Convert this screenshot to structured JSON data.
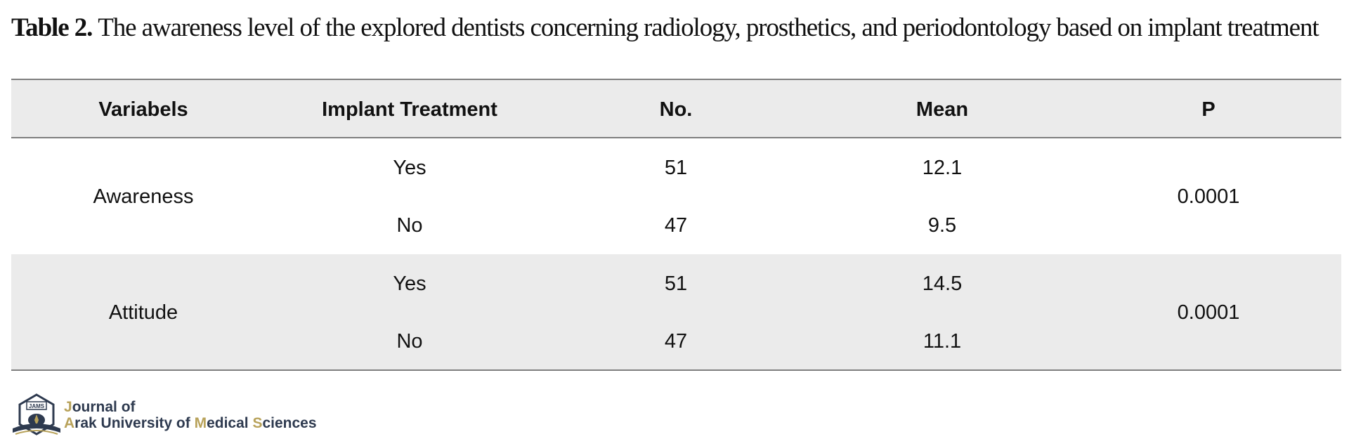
{
  "caption": {
    "label": "Table 2.",
    "text": "The awareness level of the explored dentists concerning radiology, prosthetics, and periodontology based on implant treatment"
  },
  "table": {
    "headers": [
      "Variabels",
      "Implant Treatment",
      "No.",
      "Mean",
      "P"
    ],
    "groups": [
      {
        "variable": "Awareness",
        "p": "0.0001",
        "rows": [
          {
            "treatment": "Yes",
            "no": "51",
            "mean": "12.1"
          },
          {
            "treatment": "No",
            "no": "47",
            "mean": "9.5"
          }
        ]
      },
      {
        "variable": "Attitude",
        "p": "0.0001",
        "rows": [
          {
            "treatment": "Yes",
            "no": "51",
            "mean": "14.5"
          },
          {
            "treatment": "No",
            "no": "47",
            "mean": "11.1"
          }
        ]
      }
    ]
  },
  "logo": {
    "line1_initial": "J",
    "line1_rest": "ournal of",
    "w1_initial": "A",
    "w1_rest": "rak University of ",
    "w2_initial": "M",
    "w2_rest": "edical ",
    "w3_initial": "S",
    "w3_rest": "ciences",
    "seal_text": "JAMS",
    "colors": {
      "navy": "#2e3a4f",
      "gold": "#b8a25a",
      "header_band": "#ebebeb",
      "rule": "#7f7f7f"
    }
  }
}
